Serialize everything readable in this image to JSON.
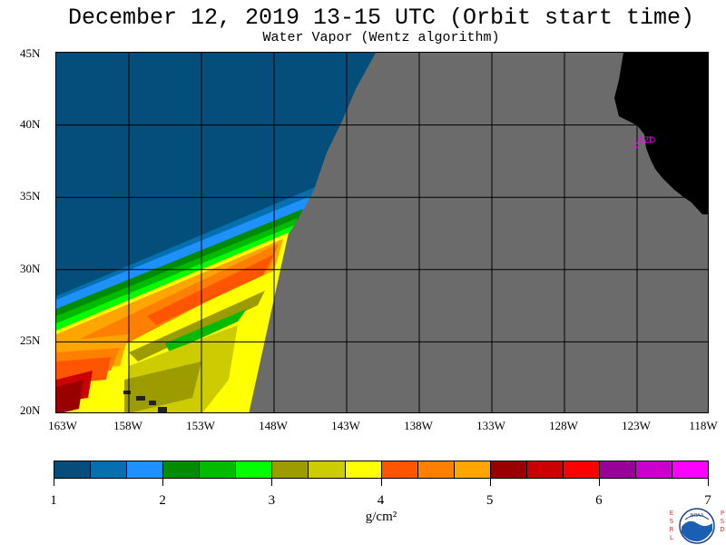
{
  "title": "December 12, 2019  13-15 UTC  (Orbit start time)",
  "subtitle": "Water Vapor (Wentz algorithm)",
  "map": {
    "lon_range": [
      -163,
      -118
    ],
    "lat_range": [
      20,
      45
    ],
    "lat_ticks": [
      "45N",
      "40N",
      "35N",
      "30N",
      "25N",
      "20N"
    ],
    "lon_ticks": [
      "163W",
      "158W",
      "153W",
      "148W",
      "143W",
      "138W",
      "133W",
      "128W",
      "123W",
      "118W"
    ],
    "no_data_color": "#6b6b6b",
    "land_color": "#000000",
    "marker": {
      "label": "CZD",
      "color": "#ff00ff",
      "lon": -123.1,
      "lat": 38.6
    }
  },
  "colorbar": {
    "min": 1,
    "max": 7,
    "labels": [
      "1",
      "2",
      "3",
      "4",
      "5",
      "6",
      "7"
    ],
    "units": "g/cm²",
    "colors": [
      "#034e7b",
      "#0570b0",
      "#1e90ff",
      "#008b00",
      "#00bb00",
      "#00ff00",
      "#9c9c00",
      "#cccc00",
      "#ffff00",
      "#ff5500",
      "#ff7f00",
      "#ffa500",
      "#990000",
      "#cc0000",
      "#ff0000",
      "#990099",
      "#cc00cc",
      "#ff00ff"
    ]
  },
  "logo": {
    "left_letters": [
      "E",
      "S",
      "R",
      "L"
    ],
    "right_letters": [
      "P",
      "S",
      "D"
    ],
    "center_text": "NOAA"
  }
}
